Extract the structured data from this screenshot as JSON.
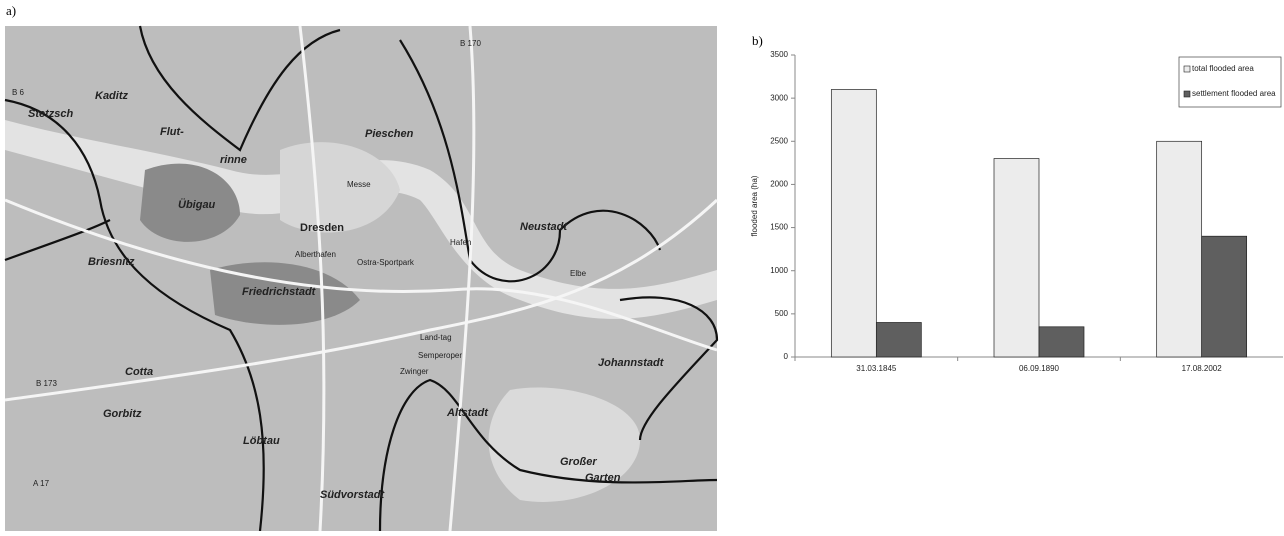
{
  "panel_labels": [
    "a)",
    "b)"
  ],
  "map": {
    "labels": [
      "Dresden",
      "Kaditz",
      "Stetzsch",
      "Pieschen",
      "Übigau",
      "Neustadt",
      "Briesnitz",
      "Friedrichstadt",
      "Cotta",
      "Gorbitz",
      "Löbtau",
      "Altstadt",
      "Johannstadt",
      "Südvorstadt",
      "Großer",
      "Garten",
      "Flut-",
      "rinne",
      "Messe",
      "Alberthafen",
      "Semperoper",
      "Zwinger",
      "Hafen",
      "Elbe",
      "B 6",
      "B 170",
      "B 173",
      "A 17",
      "Ostra-Sportpark",
      "Land-tag"
    ]
  },
  "chart_data": {
    "type": "bar",
    "y_label": "flooded area (ha)",
    "categories": [
      "31.03.1845",
      "06.09.1890",
      "17.08.2002"
    ],
    "series": [
      {
        "name": "total flooded area",
        "color": "#ececec",
        "values": [
          3100,
          2300,
          2500
        ]
      },
      {
        "name": "settlement flooded area",
        "color": "#5f5f5f",
        "values": [
          400,
          350,
          1400
        ]
      }
    ],
    "ylim": [
      0,
      3500
    ],
    "yticks": [
      0,
      500,
      1000,
      1500,
      2000,
      2500,
      3000,
      3500
    ],
    "legend": "top-right"
  }
}
